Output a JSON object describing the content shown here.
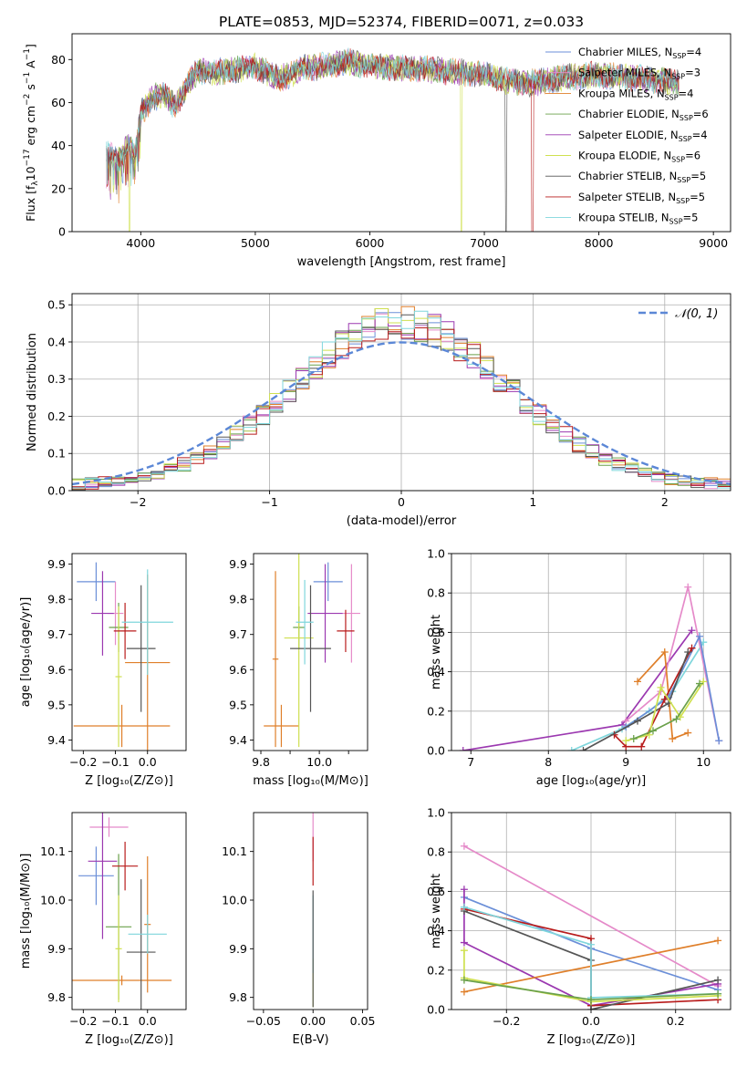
{
  "figure": {
    "title": "PLATE=0853, MJD=52374, FIBERID=0071, z=0.033"
  },
  "colors": {
    "chabrier_miles": "#6b8fd8",
    "salpeter_miles": "#e58ac9",
    "kroupa_miles": "#df7f2a",
    "chabrier_elodie": "#6aa04a",
    "salpeter_elodie": "#9b38b0",
    "kroupa_elodie": "#cfe04f",
    "chabrier_stelib": "#555555",
    "salpeter_stelib": "#b81c1c",
    "kroupa_stelib": "#7fd6dc",
    "normal": "#5b87d6"
  },
  "chart_data": [
    {
      "id": "spectrum",
      "type": "line",
      "xlabel": "wavelength [Angstrom, rest frame]",
      "ylabel": "Flux [f$_\\lambda$10$^{-17}$ erg cm$^{-2}$ s$^{-1}$ A$^{-1}$]",
      "xlim": [
        3400,
        9150
      ],
      "ylim": [
        0,
        92
      ],
      "xticks": [
        4000,
        5000,
        6000,
        7000,
        8000,
        9000
      ],
      "yticks": [
        0,
        20,
        40,
        60,
        80
      ],
      "legend_position": "top-right",
      "continuum_anchors": {
        "wavelength": [
          3700,
          3800,
          3900,
          3950,
          4000,
          4100,
          4200,
          4300,
          4400,
          4500,
          4600,
          4800,
          5000,
          5100,
          5200,
          5300,
          5400,
          5600,
          5800,
          6000,
          6200,
          6400,
          6600,
          6800,
          7000,
          7200,
          7400,
          7600,
          7800,
          8000,
          8200,
          8400,
          8600,
          8700
        ],
        "flux": [
          36,
          33,
          40,
          34,
          55,
          62,
          64,
          58,
          68,
          75,
          74,
          75,
          77,
          74,
          71,
          73,
          76,
          77,
          79,
          77,
          76,
          76,
          75,
          74,
          73,
          70,
          69,
          71,
          72,
          73,
          72,
          71,
          70,
          69
        ]
      },
      "dropouts": [
        {
          "series": "Kroupa ELODIE",
          "wavelength": 3900
        },
        {
          "series": "Kroupa ELODIE",
          "wavelength": 6800
        },
        {
          "series": "Chabrier STELIB",
          "wavelength": 7190
        },
        {
          "series": "Salpeter STELIB",
          "wavelength": 7420
        }
      ],
      "series": [
        {
          "key": "chabrier_miles",
          "legend": "Chabrier MILES, N",
          "n": "4"
        },
        {
          "key": "salpeter_miles",
          "legend": "Salpeter MILES, N",
          "n": "3"
        },
        {
          "key": "kroupa_miles",
          "legend": "Kroupa MILES, N",
          "n": "4"
        },
        {
          "key": "chabrier_elodie",
          "legend": "Chabrier ELODIE, N",
          "n": "6"
        },
        {
          "key": "salpeter_elodie",
          "legend": "Salpeter ELODIE, N",
          "n": "4"
        },
        {
          "key": "kroupa_elodie",
          "legend": "Kroupa ELODIE, N",
          "n": "6"
        },
        {
          "key": "chabrier_stelib",
          "legend": "Chabrier STELIB, N",
          "n": "5"
        },
        {
          "key": "salpeter_stelib",
          "legend": "Salpeter STELIB, N",
          "n": "5"
        },
        {
          "key": "kroupa_stelib",
          "legend": "Kroupa STELIB, N",
          "n": "5"
        }
      ],
      "legend_sub": "SSP"
    },
    {
      "id": "residuals",
      "type": "area",
      "xlabel": "(data-model)/error",
      "ylabel": "Normed distribution",
      "xlim": [
        -2.5,
        2.5
      ],
      "ylim": [
        0,
        0.53
      ],
      "xticks": [
        -2,
        -1,
        0,
        1,
        2
      ],
      "yticks": [
        0.0,
        0.1,
        0.2,
        0.3,
        0.4,
        0.5
      ],
      "grid": true,
      "legend_label": "𝒩(0, 1)",
      "legend_position": "top-right",
      "bin_width": 0.1,
      "bin_start": -2.5
    },
    {
      "id": "age_vs_Z",
      "type": "scatter",
      "xlabel": "Z [log₁₀(Z/Z⊙)]",
      "ylabel": "age  [log₁₀(age/yr)]",
      "xlim": [
        -0.235,
        0.12
      ],
      "ylim": [
        9.37,
        9.93
      ],
      "xticks": [
        -0.2,
        -0.1,
        0.0
      ],
      "yticks": [
        9.4,
        9.5,
        9.6,
        9.7,
        9.8,
        9.9
      ],
      "points": [
        {
          "key": "chabrier_miles",
          "x": -0.16,
          "xerr": 0.06,
          "y": 9.85,
          "yerr": 0.055
        },
        {
          "key": "salpeter_miles",
          "x": -0.1,
          "xerr": 0.025,
          "y": 9.76,
          "yerr": 0.09
        },
        {
          "key": "kroupa_miles",
          "x": -0.08,
          "xerr": 0.15,
          "y": 9.44,
          "yerr": 0.06
        },
        {
          "key": "kroupa_miles",
          "x": 0.0,
          "xerr": 0.07,
          "y": 9.62,
          "yerr": 0.25
        },
        {
          "key": "chabrier_elodie",
          "x": -0.09,
          "xerr": 0.03,
          "y": 9.72,
          "yerr": 0.07
        },
        {
          "key": "salpeter_elodie",
          "x": -0.14,
          "xerr": 0.035,
          "y": 9.76,
          "yerr": 0.12
        },
        {
          "key": "kroupa_elodie",
          "x": -0.09,
          "xerr": 0.01,
          "y": 9.58,
          "yerr": 0.2
        },
        {
          "key": "chabrier_stelib",
          "x": -0.02,
          "xerr": 0.045,
          "y": 9.66,
          "yerr": 0.18
        },
        {
          "key": "salpeter_stelib",
          "x": -0.07,
          "xerr": 0.035,
          "y": 9.71,
          "yerr": 0.08
        },
        {
          "key": "kroupa_stelib",
          "x": 0.0,
          "xerr": 0.08,
          "y": 9.735,
          "yerr": 0.15
        }
      ]
    },
    {
      "id": "age_vs_mass",
      "type": "scatter",
      "xlabel": "mass [log₁₀(M/M⊙)]",
      "ylabel": "",
      "xlim": [
        9.775,
        10.165
      ],
      "ylim": [
        9.37,
        9.93
      ],
      "xticks": [
        9.8,
        9.9,
        10.0,
        10.1
      ],
      "xticklabels": [
        "9.8",
        "",
        "10.0",
        ""
      ],
      "yticks": [
        9.4,
        9.5,
        9.6,
        9.7,
        9.8,
        9.9
      ],
      "points": [
        {
          "key": "chabrier_miles",
          "x": 10.03,
          "xerr": 0.05,
          "y": 9.85,
          "yerr": 0.055
        },
        {
          "key": "salpeter_miles",
          "x": 10.11,
          "xerr": 0.03,
          "y": 9.76,
          "yerr": 0.14
        },
        {
          "key": "kroupa_miles",
          "x": 9.87,
          "xerr": 0.06,
          "y": 9.44,
          "yerr": 0.06
        },
        {
          "key": "kroupa_miles",
          "x": 9.85,
          "xerr": 0.01,
          "y": 9.63,
          "yerr": 0.25
        },
        {
          "key": "chabrier_elodie",
          "x": 9.93,
          "xerr": 0.02,
          "y": 9.72,
          "yerr": 0.06
        },
        {
          "key": "salpeter_elodie",
          "x": 10.02,
          "xerr": 0.06,
          "y": 9.76,
          "yerr": 0.14
        },
        {
          "key": "kroupa_elodie",
          "x": 9.93,
          "xerr": 0.05,
          "y": 9.69,
          "yerr": 0.31
        },
        {
          "key": "chabrier_stelib",
          "x": 9.97,
          "xerr": 0.07,
          "y": 9.66,
          "yerr": 0.18
        },
        {
          "key": "salpeter_stelib",
          "x": 10.09,
          "xerr": 0.03,
          "y": 9.71,
          "yerr": 0.06
        },
        {
          "key": "kroupa_stelib",
          "x": 9.95,
          "xerr": 0.03,
          "y": 9.735,
          "yerr": 0.12
        }
      ]
    },
    {
      "id": "weight_vs_age",
      "type": "line",
      "xlabel": "age  [log₁₀(age/yr)]",
      "ylabel": "mass weight",
      "xlim": [
        6.75,
        10.35
      ],
      "ylim": [
        0,
        1.0
      ],
      "xticks": [
        7,
        8,
        9,
        10
      ],
      "yticks": [
        0.0,
        0.2,
        0.4,
        0.6,
        0.8,
        1.0
      ],
      "grid": true,
      "series": [
        {
          "key": "salpeter_elodie",
          "x": [
            6.9,
            8.95,
            9.85
          ],
          "y": [
            0.0,
            0.13,
            0.61
          ]
        },
        {
          "key": "kroupa_stelib",
          "x": [
            8.3,
            8.95,
            9.3,
            9.6,
            10.0
          ],
          "y": [
            0.0,
            0.11,
            0.2,
            0.3,
            0.55
          ]
        },
        {
          "key": "salpeter_miles",
          "x": [
            9.0,
            9.45,
            9.8,
            10.2
          ],
          "y": [
            0.15,
            0.3,
            0.83,
            0.05
          ]
        },
        {
          "key": "kroupa_miles",
          "x": [
            9.15,
            9.5,
            9.6,
            9.8
          ],
          "y": [
            0.35,
            0.5,
            0.06,
            0.09
          ]
        },
        {
          "key": "chabrier_miles",
          "x": [
            9.0,
            9.55,
            9.95,
            10.2
          ],
          "y": [
            0.12,
            0.27,
            0.58,
            0.05
          ]
        },
        {
          "key": "salpeter_stelib",
          "x": [
            8.85,
            9.0,
            9.2,
            9.5,
            9.85
          ],
          "y": [
            0.08,
            0.02,
            0.02,
            0.26,
            0.52
          ]
        },
        {
          "key": "chabrier_stelib",
          "x": [
            8.45,
            9.15,
            9.55,
            9.8
          ],
          "y": [
            0.0,
            0.15,
            0.24,
            0.5
          ]
        },
        {
          "key": "kroupa_elodie",
          "x": [
            9.0,
            9.3,
            9.45,
            9.7,
            10.0
          ],
          "y": [
            0.05,
            0.08,
            0.32,
            0.17,
            0.35
          ]
        },
        {
          "key": "chabrier_elodie",
          "x": [
            9.1,
            9.35,
            9.65,
            9.95
          ],
          "y": [
            0.06,
            0.1,
            0.16,
            0.34
          ]
        }
      ]
    },
    {
      "id": "mass_vs_Z",
      "type": "scatter",
      "xlabel": "Z [log₁₀(Z/Z⊙)]",
      "ylabel": "mass [log₁₀(M/M⊙)]",
      "xlim": [
        -0.235,
        0.12
      ],
      "ylim": [
        9.775,
        10.18
      ],
      "xticks": [
        -0.2,
        -0.1,
        0.0
      ],
      "yticks": [
        9.8,
        9.9,
        10.0,
        10.1
      ],
      "points": [
        {
          "key": "chabrier_miles",
          "x": -0.16,
          "xerr": 0.055,
          "y": 10.05,
          "yerr": 0.06
        },
        {
          "key": "salpeter_miles",
          "x": -0.12,
          "xerr": 0.06,
          "y": 10.15,
          "yerr": 0.02
        },
        {
          "key": "kroupa_miles",
          "x": -0.08,
          "xerr": 0.155,
          "y": 9.835,
          "yerr": 0.01
        },
        {
          "key": "kroupa_miles",
          "x": 0.0,
          "xerr": 0.01,
          "y": 9.95,
          "yerr": 0.14
        },
        {
          "key": "chabrier_elodie",
          "x": -0.09,
          "xerr": 0.04,
          "y": 9.945,
          "yerr": 0.15
        },
        {
          "key": "salpeter_elodie",
          "x": -0.14,
          "xerr": 0.045,
          "y": 10.08,
          "yerr": 0.16
        },
        {
          "key": "kroupa_elodie",
          "x": -0.09,
          "xerr": 0.01,
          "y": 9.9,
          "yerr": 0.11
        },
        {
          "key": "chabrier_stelib",
          "x": -0.02,
          "xerr": 0.045,
          "y": 9.893,
          "yerr": 0.15
        },
        {
          "key": "salpeter_stelib",
          "x": -0.07,
          "xerr": 0.04,
          "y": 10.07,
          "yerr": 0.05
        },
        {
          "key": "kroupa_stelib",
          "x": 0.0,
          "xerr": 0.06,
          "y": 9.93,
          "yerr": 0.04
        }
      ]
    },
    {
      "id": "mass_vs_ebv",
      "type": "scatter",
      "xlabel": "E(B-V)",
      "ylabel": "",
      "xlim": [
        -0.06,
        0.055
      ],
      "ylim": [
        9.775,
        10.18
      ],
      "xticks": [
        -0.05,
        0.0,
        0.05
      ],
      "xticklabels": [
        "−0.05",
        "0.00",
        "0.05"
      ],
      "yticks": [
        9.8,
        9.9,
        10.0,
        10.1
      ],
      "points": [
        {
          "key": "kroupa_elodie",
          "x": 0.0,
          "y": 9.83,
          "yerr": 0.05
        },
        {
          "key": "kroupa_stelib",
          "x": 0.0,
          "y": 9.93,
          "yerr": 0.08
        },
        {
          "key": "chabrier_stelib",
          "x": 0.0,
          "y": 9.9,
          "yerr": 0.12
        },
        {
          "key": "salpeter_miles",
          "x": 0.0,
          "y": 10.13,
          "yerr": 0.05
        },
        {
          "key": "salpeter_stelib",
          "x": 0.0,
          "y": 10.08,
          "yerr": 0.05
        }
      ]
    },
    {
      "id": "weight_vs_Z",
      "type": "line",
      "xlabel": "Z [log₁₀(Z/Z⊙)]",
      "ylabel": "mass weight",
      "xlim": [
        -0.33,
        0.33
      ],
      "ylim": [
        0,
        1.0
      ],
      "xticks": [
        -0.2,
        0.0,
        0.2
      ],
      "yticks": [
        0.0,
        0.2,
        0.4,
        0.6,
        0.8,
        1.0
      ],
      "grid": true,
      "series": [
        {
          "key": "salpeter_miles",
          "x": [
            -0.3,
            0.3
          ],
          "y": [
            0.83,
            0.12
          ]
        },
        {
          "key": "chabrier_miles",
          "x": [
            -0.3,
            0.0,
            0.3
          ],
          "y": [
            0.57,
            0.31,
            0.1
          ]
        },
        {
          "key": "salpeter_elodie",
          "x": [
            -0.3,
            -0.3,
            0.0,
            0.3
          ],
          "y": [
            0.61,
            0.34,
            0.02,
            0.13
          ]
        },
        {
          "key": "salpeter_stelib",
          "x": [
            -0.3,
            0.0,
            0.0,
            0.3
          ],
          "y": [
            0.51,
            0.36,
            0.02,
            0.05
          ]
        },
        {
          "key": "chabrier_stelib",
          "x": [
            -0.3,
            0.0,
            0.0,
            0.3
          ],
          "y": [
            0.5,
            0.25,
            0.0,
            0.15
          ]
        },
        {
          "key": "kroupa_miles",
          "x": [
            -0.3,
            0.3
          ],
          "y": [
            0.09,
            0.35
          ]
        },
        {
          "key": "kroupa_stelib",
          "x": [
            -0.3,
            0.0,
            0.0,
            0.3
          ],
          "y": [
            0.52,
            0.33,
            0.06,
            0.08
          ]
        },
        {
          "key": "kroupa_elodie",
          "x": [
            -0.3,
            -0.3,
            0.0,
            0.3
          ],
          "y": [
            0.3,
            0.16,
            0.04,
            0.07
          ]
        },
        {
          "key": "chabrier_elodie",
          "x": [
            -0.3,
            0.0,
            0.3
          ],
          "y": [
            0.15,
            0.05,
            0.08
          ]
        }
      ]
    }
  ]
}
